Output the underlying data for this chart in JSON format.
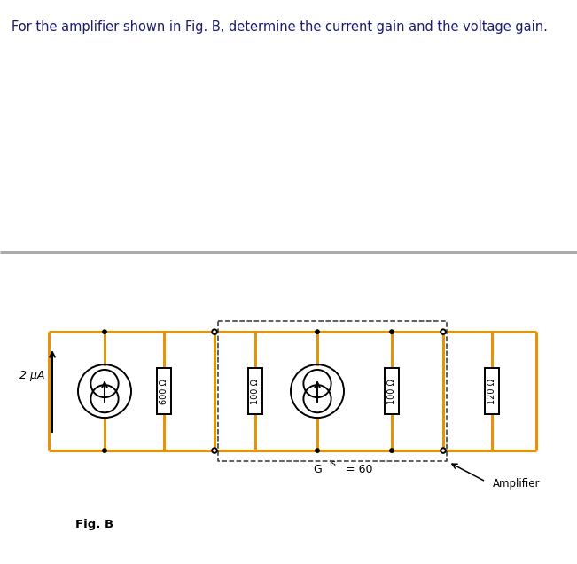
{
  "title_text": "For the amplifier shown in Fig. B, determine the current gain and the voltage gain.",
  "title_fontsize": 10.5,
  "fig_label": "Fig. B",
  "circuit_label": "Amplifier",
  "source_label": "2 μA",
  "resistors": [
    "600 Ω",
    "100 Ω",
    "100 Ω",
    "120 Ω"
  ],
  "orange_color": "#E8920A",
  "wire_color": "#000000",
  "bg_color": "#ffffff",
  "divider_color": "#aaaaaa",
  "node_dot_r": 0.012,
  "open_circle_r": 0.016
}
